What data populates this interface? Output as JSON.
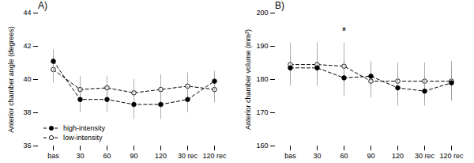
{
  "chart_data": [
    {
      "type": "line",
      "title": "A)",
      "ylabel": "Anterior chamber angle (degrees)",
      "categories": [
        "bas",
        "30",
        "60",
        "90",
        "120",
        "30 rec",
        "120 rec"
      ],
      "ylim": [
        36,
        44
      ],
      "yticks": [
        36,
        38,
        40,
        42,
        44
      ],
      "grid": false,
      "legend": "lower left",
      "series": [
        {
          "name": "high-intensity",
          "color": "#000000",
          "marker": "filled circle",
          "line_style": "dashed",
          "values": [
            41.1,
            38.8,
            38.8,
            38.5,
            38.5,
            38.8,
            39.9
          ],
          "yerr": [
            0.7,
            0.8,
            0.8,
            0.9,
            0.9,
            0.8,
            0.6
          ]
        },
        {
          "name": "low-intensity",
          "color": "#000000",
          "marker": "open circle",
          "line_style": "dashed",
          "values": [
            40.6,
            39.4,
            39.5,
            39.2,
            39.4,
            39.6,
            39.4
          ],
          "yerr": [
            0.8,
            0.8,
            0.7,
            0.8,
            0.9,
            0.8,
            0.8
          ]
        }
      ]
    },
    {
      "type": "line",
      "title": "B)",
      "ylabel": "Anterior chamber volume (mm³)",
      "categories": [
        "bas",
        "30",
        "60",
        "90",
        "120",
        "30 rec",
        "120 rec"
      ],
      "ylim": [
        160,
        200
      ],
      "yticks": [
        160,
        170,
        180,
        190,
        200
      ],
      "grid": false,
      "legend": false,
      "annotations": [
        {
          "text": "*",
          "x": "60",
          "y": 193.5
        }
      ],
      "series": [
        {
          "name": "high-intensity",
          "color": "#000000",
          "marker": "filled circle",
          "line_style": "dashed",
          "values": [
            183.5,
            183.5,
            180.5,
            181.0,
            177.5,
            176.5,
            179.0
          ],
          "yerr": [
            3.5,
            4.0,
            5.5,
            4.5,
            5.5,
            4.5,
            5.0
          ]
        },
        {
          "name": "low-intensity",
          "color": "#000000",
          "marker": "open circle",
          "line_style": "dashed",
          "values": [
            184.5,
            184.5,
            184.0,
            179.5,
            179.5,
            179.5,
            179.5
          ],
          "yerr": [
            6.5,
            6.5,
            7.0,
            5.0,
            5.5,
            5.5,
            6.0
          ]
        }
      ]
    }
  ]
}
